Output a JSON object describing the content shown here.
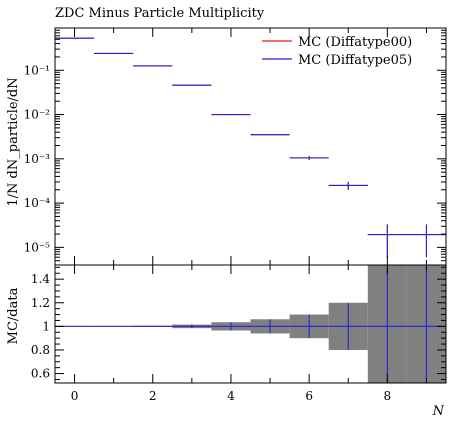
{
  "chart_data": [
    {
      "type": "line",
      "title": "ZDC Minus Particle Multiplicity",
      "ylabel": "1/N dN_particle/dN",
      "yscale": "log",
      "ylim": [
        4e-06,
        0.9
      ],
      "xlim": [
        -0.5,
        9.5
      ],
      "legend_position": "top-right",
      "y_tick_labels": [
        {
          "value": 1e-05,
          "label": "10⁻⁵"
        },
        {
          "value": 0.0001,
          "label": "10⁻⁴"
        },
        {
          "value": 0.001,
          "label": "10⁻³"
        },
        {
          "value": 0.01,
          "label": "10⁻²"
        },
        {
          "value": 0.1,
          "label": "10⁻¹"
        }
      ],
      "series": [
        {
          "name": "MC (Diffatype00)",
          "color": "#e41a1c",
          "bins": [
            {
              "xlo": -0.5,
              "xhi": 0.5,
              "y": 0.53,
              "err": 0.0
            },
            {
              "xlo": 0.5,
              "xhi": 1.5,
              "y": 0.24,
              "err": 0.0
            },
            {
              "xlo": 1.5,
              "xhi": 2.5,
              "y": 0.125,
              "err": 0.0
            },
            {
              "xlo": 2.5,
              "xhi": 3.5,
              "y": 0.046,
              "err": 0.0
            },
            {
              "xlo": 3.5,
              "xhi": 4.5,
              "y": 0.01,
              "err": 0.0003
            },
            {
              "xlo": 4.5,
              "xhi": 5.5,
              "y": 0.0035,
              "err": 0.0001
            },
            {
              "xlo": 5.5,
              "xhi": 6.5,
              "y": 0.00105,
              "err": 0.0001
            },
            {
              "xlo": 6.5,
              "xhi": 7.5,
              "y": 0.00025,
              "err": 5e-05
            },
            {
              "xlo": 7.5,
              "xhi": 8.5,
              "y": 1.95e-05,
              "err": 1.35e-05
            },
            {
              "xlo": 8.5,
              "xhi": 9.5,
              "y": 1.95e-05,
              "err": 1.35e-05
            }
          ]
        },
        {
          "name": "MC (Diffatype05)",
          "color": "#2222dd",
          "bins": [
            {
              "xlo": -0.5,
              "xhi": 0.5,
              "y": 0.53,
              "err": 0.0
            },
            {
              "xlo": 0.5,
              "xhi": 1.5,
              "y": 0.24,
              "err": 0.0
            },
            {
              "xlo": 1.5,
              "xhi": 2.5,
              "y": 0.125,
              "err": 0.0
            },
            {
              "xlo": 2.5,
              "xhi": 3.5,
              "y": 0.046,
              "err": 0.0
            },
            {
              "xlo": 3.5,
              "xhi": 4.5,
              "y": 0.01,
              "err": 0.0003
            },
            {
              "xlo": 4.5,
              "xhi": 5.5,
              "y": 0.0035,
              "err": 0.0001
            },
            {
              "xlo": 5.5,
              "xhi": 6.5,
              "y": 0.00105,
              "err": 0.0001
            },
            {
              "xlo": 6.5,
              "xhi": 7.5,
              "y": 0.00025,
              "err": 5e-05
            },
            {
              "xlo": 7.5,
              "xhi": 8.5,
              "y": 1.95e-05,
              "err": 1.35e-05
            },
            {
              "xlo": 8.5,
              "xhi": 9.5,
              "y": 1.95e-05,
              "err": 1.35e-05
            }
          ]
        }
      ]
    },
    {
      "type": "line",
      "ylabel": "MC/data",
      "xlabel": "N",
      "xlim": [
        -0.5,
        9.5
      ],
      "ylim": [
        0.52,
        1.52
      ],
      "x_ticks": [
        0,
        2,
        4,
        6,
        8
      ],
      "y_ticks": [
        0.6,
        0.8,
        1.0,
        1.2,
        1.4
      ],
      "y_tick_labels": [
        "0.6",
        "0.8",
        "1",
        "1.2",
        "1.4"
      ],
      "band_color": "#808080",
      "band": [
        {
          "xlo": -0.5,
          "xhi": 0.5,
          "err": 0.0
        },
        {
          "xlo": 0.5,
          "xhi": 1.5,
          "err": 0.0
        },
        {
          "xlo": 1.5,
          "xhi": 2.5,
          "err": 0.005
        },
        {
          "xlo": 2.5,
          "xhi": 3.5,
          "err": 0.015
        },
        {
          "xlo": 3.5,
          "xhi": 4.5,
          "err": 0.035
        },
        {
          "xlo": 4.5,
          "xhi": 5.5,
          "err": 0.06
        },
        {
          "xlo": 5.5,
          "xhi": 6.5,
          "err": 0.1
        },
        {
          "xlo": 6.5,
          "xhi": 7.5,
          "err": 0.2
        },
        {
          "xlo": 7.5,
          "xhi": 8.5,
          "err": 0.6
        },
        {
          "xlo": 8.5,
          "xhi": 9.5,
          "err": 0.6
        }
      ],
      "series": [
        {
          "name": "MC (Diffatype05)",
          "color": "#2222dd",
          "bins": [
            {
              "xlo": -0.5,
              "xhi": 0.5,
              "y": 1.0,
              "err": 0.0
            },
            {
              "xlo": 0.5,
              "xhi": 1.5,
              "y": 1.0,
              "err": 0.0
            },
            {
              "xlo": 1.5,
              "xhi": 2.5,
              "y": 1.0,
              "err": 0.005
            },
            {
              "xlo": 2.5,
              "xhi": 3.5,
              "y": 1.0,
              "err": 0.015
            },
            {
              "xlo": 3.5,
              "xhi": 4.5,
              "y": 1.0,
              "err": 0.035
            },
            {
              "xlo": 4.5,
              "xhi": 5.5,
              "y": 1.0,
              "err": 0.06
            },
            {
              "xlo": 5.5,
              "xhi": 6.5,
              "y": 1.0,
              "err": 0.1
            },
            {
              "xlo": 6.5,
              "xhi": 7.5,
              "y": 1.0,
              "err": 0.2
            },
            {
              "xlo": 7.5,
              "xhi": 8.5,
              "y": 1.0,
              "err": 0.6
            },
            {
              "xlo": 8.5,
              "xhi": 9.5,
              "y": 1.0,
              "err": 0.6
            }
          ]
        }
      ]
    }
  ]
}
